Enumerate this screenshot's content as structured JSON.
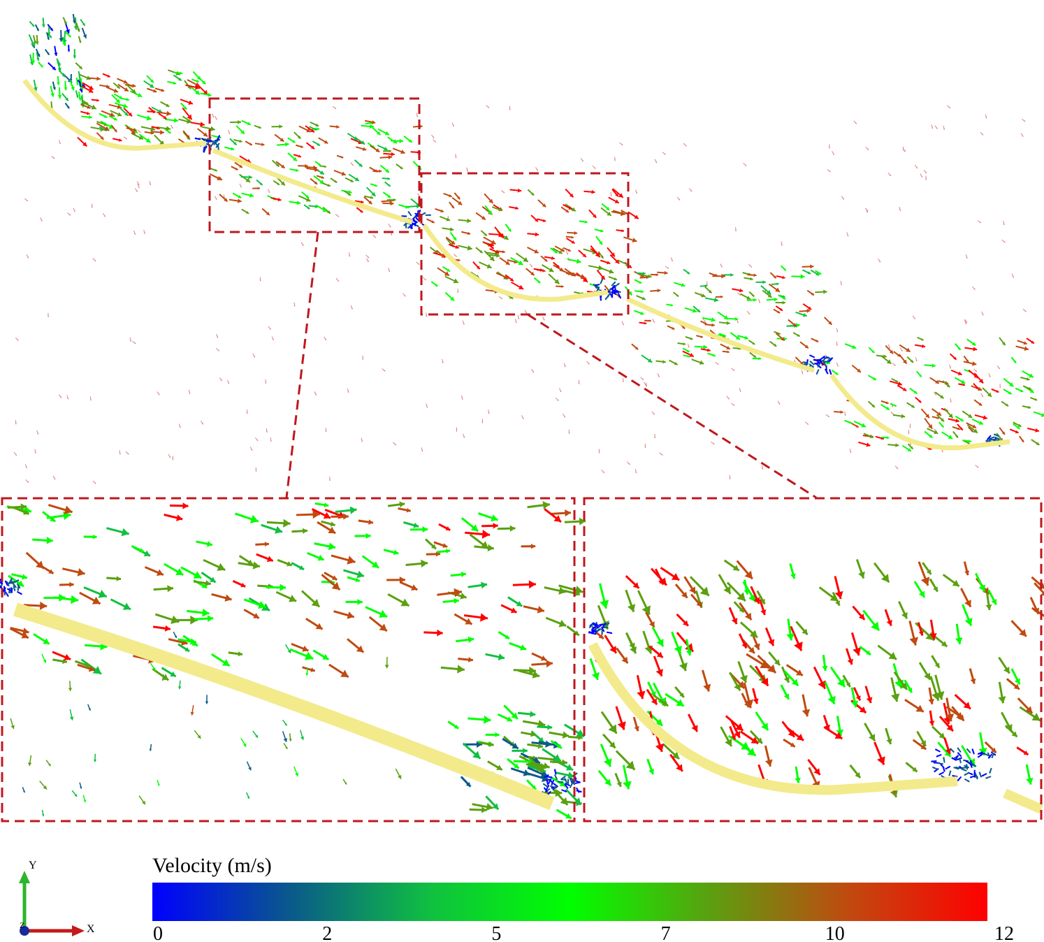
{
  "colorbar": {
    "title": "Velocity (m/s)",
    "ticks": [
      0,
      2,
      5,
      7,
      10,
      12
    ],
    "colors": [
      "#0000ff",
      "#0a5a8a",
      "#10c040",
      "#00ff00",
      "#5aa010",
      "#c04a10",
      "#ff0000"
    ]
  },
  "axes": {
    "y": "Y",
    "x": "X",
    "z": "Z"
  }
}
